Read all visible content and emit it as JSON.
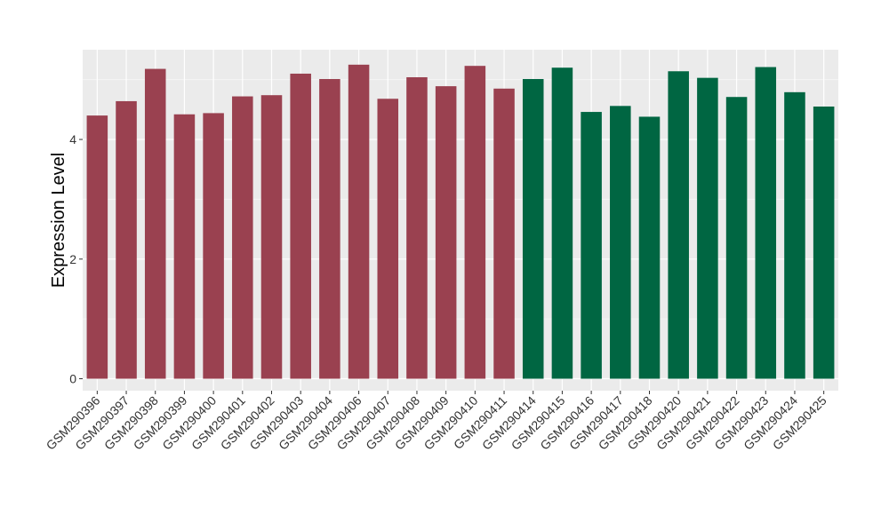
{
  "chart_data": {
    "type": "bar",
    "title": "",
    "xlabel": "",
    "ylabel": "Expression Level",
    "ylim": [
      -0.2,
      5.5
    ],
    "yticks": [
      0,
      2,
      4
    ],
    "grid": true,
    "legend": "none",
    "categories": [
      "GSM290396",
      "GSM290397",
      "GSM290398",
      "GSM290399",
      "GSM290400",
      "GSM290401",
      "GSM290402",
      "GSM290403",
      "GSM290404",
      "GSM290406",
      "GSM290407",
      "GSM290408",
      "GSM290409",
      "GSM290410",
      "GSM290411",
      "GSM290414",
      "GSM290415",
      "GSM290416",
      "GSM290417",
      "GSM290418",
      "GSM290420",
      "GSM290421",
      "GSM290422",
      "GSM290423",
      "GSM290424",
      "GSM290425"
    ],
    "values": [
      4.4,
      4.64,
      5.18,
      4.42,
      4.44,
      4.72,
      4.74,
      5.1,
      5.01,
      5.25,
      4.68,
      5.04,
      4.89,
      5.23,
      4.85,
      5.01,
      5.2,
      4.46,
      4.56,
      4.38,
      5.14,
      5.03,
      4.71,
      5.21,
      4.79,
      4.55
    ],
    "groups": [
      {
        "color": "#9A4150",
        "count": 15
      },
      {
        "color": "#006642",
        "count": 11
      }
    ]
  },
  "colors": {
    "panel_background": "#EBEBEB",
    "grid_major": "#FFFFFF",
    "grid_minor": "#F5F5F5"
  }
}
